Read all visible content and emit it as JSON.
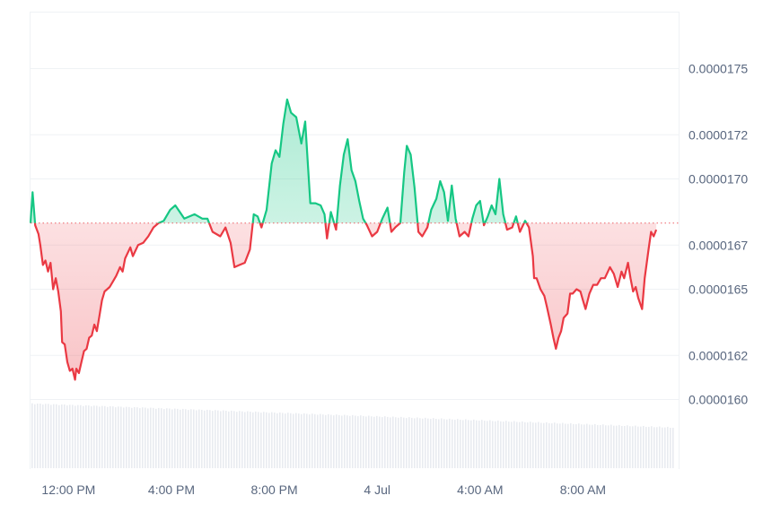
{
  "chart_data": {
    "type": "area",
    "baseline": 1.68e-05,
    "y_ticks": [
      "0.0000175",
      "0.0000172",
      "0.0000170",
      "0.0000167",
      "0.0000165",
      "0.0000162",
      "0.0000160"
    ],
    "y_tick_values": [
      1.75e-05,
      1.72e-05,
      1.7e-05,
      1.67e-05,
      1.65e-05,
      1.62e-05,
      1.6e-05
    ],
    "x_ticks": [
      "12:00 PM",
      "4:00 PM",
      "8:00 PM",
      "4 Jul",
      "4:00 AM",
      "8:00 AM"
    ],
    "x_tick_hours": [
      12,
      16,
      20,
      24,
      28,
      32
    ],
    "x_range_hours": [
      10.52,
      35.72
    ],
    "y_range": [
      1.59e-05,
      1.8e-05
    ],
    "grid": true,
    "colors": {
      "above": "#16c784",
      "below": "#ea3943",
      "axis_text": "#58667e",
      "grid": "#eff2f5",
      "volume": "#e8ebf0"
    },
    "series": [
      {
        "points": [
          [
            10.52,
            1.68e-05
          ],
          [
            10.6,
            1.694e-05
          ],
          [
            10.7,
            1.679e-05
          ],
          [
            10.83,
            1.675e-05
          ],
          [
            10.9,
            1.67e-05
          ],
          [
            11.0,
            1.661e-05
          ],
          [
            11.1,
            1.663e-05
          ],
          [
            11.2,
            1.658e-05
          ],
          [
            11.3,
            1.662e-05
          ],
          [
            11.4,
            1.65e-05
          ],
          [
            11.5,
            1.655e-05
          ],
          [
            11.6,
            1.649e-05
          ],
          [
            11.7,
            1.64e-05
          ],
          [
            11.75,
            1.626e-05
          ],
          [
            11.85,
            1.625e-05
          ],
          [
            11.95,
            1.617e-05
          ],
          [
            12.05,
            1.613e-05
          ],
          [
            12.15,
            1.614e-05
          ],
          [
            12.25,
            1.609e-05
          ],
          [
            12.3,
            1.614e-05
          ],
          [
            12.4,
            1.612e-05
          ],
          [
            12.5,
            1.617e-05
          ],
          [
            12.6,
            1.622e-05
          ],
          [
            12.7,
            1.623e-05
          ],
          [
            12.8,
            1.628e-05
          ],
          [
            12.9,
            1.629e-05
          ],
          [
            13.0,
            1.634e-05
          ],
          [
            13.1,
            1.631e-05
          ],
          [
            13.2,
            1.638e-05
          ],
          [
            13.3,
            1.645e-05
          ],
          [
            13.4,
            1.649e-05
          ],
          [
            13.5,
            1.65e-05
          ],
          [
            13.6,
            1.651e-05
          ],
          [
            13.75,
            1.654e-05
          ],
          [
            13.85,
            1.656e-05
          ],
          [
            14.0,
            1.66e-05
          ],
          [
            14.1,
            1.658e-05
          ],
          [
            14.2,
            1.664e-05
          ],
          [
            14.4,
            1.669e-05
          ],
          [
            14.5,
            1.665e-05
          ],
          [
            14.7,
            1.67e-05
          ],
          [
            14.9,
            1.671e-05
          ],
          [
            15.1,
            1.674e-05
          ],
          [
            15.3,
            1.678e-05
          ],
          [
            15.5,
            1.68e-05
          ],
          [
            15.7,
            1.681e-05
          ],
          [
            15.95,
            1.686e-05
          ],
          [
            16.15,
            1.688e-05
          ],
          [
            16.5,
            1.682e-05
          ],
          [
            16.9,
            1.684e-05
          ],
          [
            17.2,
            1.682e-05
          ],
          [
            17.4,
            1.682e-05
          ],
          [
            17.6,
            1.676e-05
          ],
          [
            17.9,
            1.674e-05
          ],
          [
            18.1,
            1.678e-05
          ],
          [
            18.3,
            1.671e-05
          ],
          [
            18.45,
            1.66e-05
          ],
          [
            18.65,
            1.661e-05
          ],
          [
            18.85,
            1.662e-05
          ],
          [
            19.05,
            1.668e-05
          ],
          [
            19.2,
            1.684e-05
          ],
          [
            19.35,
            1.683e-05
          ],
          [
            19.5,
            1.678e-05
          ],
          [
            19.7,
            1.686e-05
          ],
          [
            19.9,
            1.707e-05
          ],
          [
            20.05,
            1.713e-05
          ],
          [
            20.2,
            1.71e-05
          ],
          [
            20.35,
            1.725e-05
          ],
          [
            20.5,
            1.736e-05
          ],
          [
            20.65,
            1.73e-05
          ],
          [
            20.85,
            1.728e-05
          ],
          [
            21.05,
            1.716e-05
          ],
          [
            21.2,
            1.726e-05
          ],
          [
            21.4,
            1.689e-05
          ],
          [
            21.6,
            1.689e-05
          ],
          [
            21.8,
            1.688e-05
          ],
          [
            21.95,
            1.684e-05
          ],
          [
            22.05,
            1.673e-05
          ],
          [
            22.2,
            1.685e-05
          ],
          [
            22.4,
            1.677e-05
          ],
          [
            22.55,
            1.697e-05
          ],
          [
            22.7,
            1.711e-05
          ],
          [
            22.85,
            1.718e-05
          ],
          [
            23.0,
            1.704e-05
          ],
          [
            23.15,
            1.699e-05
          ],
          [
            23.3,
            1.69e-05
          ],
          [
            23.45,
            1.682e-05
          ],
          [
            23.6,
            1.679e-05
          ],
          [
            23.8,
            1.674e-05
          ],
          [
            24.0,
            1.676e-05
          ],
          [
            24.2,
            1.682e-05
          ],
          [
            24.4,
            1.687e-05
          ],
          [
            24.55,
            1.676e-05
          ],
          [
            24.7,
            1.678e-05
          ],
          [
            24.9,
            1.68e-05
          ],
          [
            25.05,
            1.703e-05
          ],
          [
            25.15,
            1.715e-05
          ],
          [
            25.3,
            1.711e-05
          ],
          [
            25.45,
            1.696e-05
          ],
          [
            25.6,
            1.676e-05
          ],
          [
            25.75,
            1.674e-05
          ],
          [
            25.95,
            1.678e-05
          ],
          [
            26.1,
            1.686e-05
          ],
          [
            26.3,
            1.691e-05
          ],
          [
            26.45,
            1.699e-05
          ],
          [
            26.6,
            1.694e-05
          ],
          [
            26.75,
            1.681e-05
          ],
          [
            26.9,
            1.697e-05
          ],
          [
            27.05,
            1.682e-05
          ],
          [
            27.2,
            1.674e-05
          ],
          [
            27.4,
            1.676e-05
          ],
          [
            27.55,
            1.674e-05
          ],
          [
            27.7,
            1.682e-05
          ],
          [
            27.85,
            1.688e-05
          ],
          [
            28.0,
            1.69e-05
          ],
          [
            28.15,
            1.679e-05
          ],
          [
            28.3,
            1.683e-05
          ],
          [
            28.45,
            1.688e-05
          ],
          [
            28.6,
            1.684e-05
          ],
          [
            28.75,
            1.7e-05
          ],
          [
            28.9,
            1.684e-05
          ],
          [
            29.05,
            1.677e-05
          ],
          [
            29.25,
            1.678e-05
          ],
          [
            29.4,
            1.683e-05
          ],
          [
            29.55,
            1.676e-05
          ],
          [
            29.75,
            1.681e-05
          ],
          [
            29.9,
            1.678e-05
          ],
          [
            30.05,
            1.665e-05
          ],
          [
            30.1,
            1.655e-05
          ],
          [
            30.2,
            1.655e-05
          ],
          [
            30.35,
            1.65e-05
          ],
          [
            30.5,
            1.647e-05
          ],
          [
            30.6,
            1.642e-05
          ],
          [
            30.75,
            1.634e-05
          ],
          [
            30.85,
            1.628e-05
          ],
          [
            30.95,
            1.623e-05
          ],
          [
            31.05,
            1.628e-05
          ],
          [
            31.15,
            1.631e-05
          ],
          [
            31.25,
            1.637e-05
          ],
          [
            31.4,
            1.639e-05
          ],
          [
            31.5,
            1.648e-05
          ],
          [
            31.6,
            1.648e-05
          ],
          [
            31.75,
            1.65e-05
          ],
          [
            31.9,
            1.649e-05
          ],
          [
            32.0,
            1.645e-05
          ],
          [
            32.1,
            1.641e-05
          ],
          [
            32.25,
            1.648e-05
          ],
          [
            32.4,
            1.652e-05
          ],
          [
            32.55,
            1.652e-05
          ],
          [
            32.7,
            1.655e-05
          ],
          [
            32.85,
            1.655e-05
          ],
          [
            33.05,
            1.66e-05
          ],
          [
            33.2,
            1.657e-05
          ],
          [
            33.35,
            1.651e-05
          ],
          [
            33.5,
            1.658e-05
          ],
          [
            33.6,
            1.655e-05
          ],
          [
            33.75,
            1.662e-05
          ],
          [
            33.85,
            1.655e-05
          ],
          [
            33.95,
            1.649e-05
          ],
          [
            34.05,
            1.651e-05
          ],
          [
            34.15,
            1.646e-05
          ],
          [
            34.3,
            1.641e-05
          ],
          [
            34.4,
            1.655e-05
          ],
          [
            34.55,
            1.668e-05
          ],
          [
            34.65,
            1.676e-05
          ],
          [
            34.75,
            1.674e-05
          ],
          [
            34.85,
            1.677e-05
          ]
        ]
      }
    ]
  }
}
